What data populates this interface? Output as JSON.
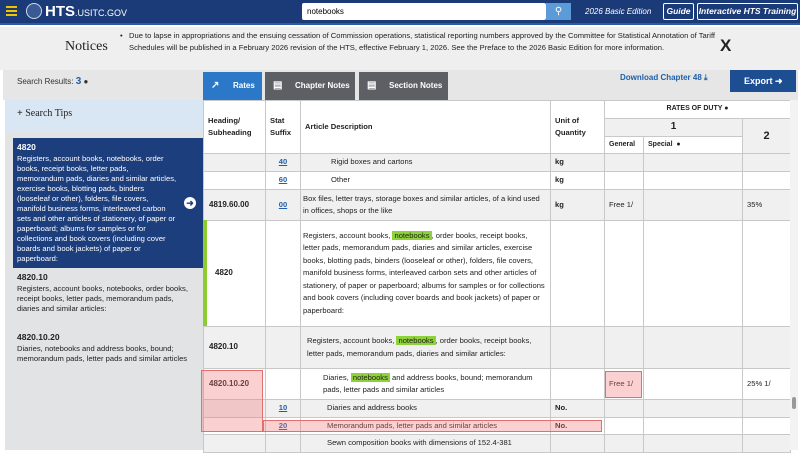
{
  "header": {
    "logo_main": "HTS",
    "logo_sub": ".USITC.GOV",
    "search_value": "notebooks",
    "edition": "2026 Basic Edition",
    "guide": "Guide",
    "training": "Interactive HTS Training"
  },
  "notices": {
    "title": "Notices",
    "text": "Due to lapse in appropriations and the ensuing cessation of Commission operations, statistical reporting numbers approved by the Committee for Statistical Annotation of Tariff Schedules will be published in a February 2026 revision of the HTS, effective February 1, 2026. See the Preface to the 2026 Basic Edition for more information.",
    "close": "X"
  },
  "toolbar": {
    "search_results_label": "Search Results:",
    "search_results_count": "3",
    "tabs": [
      {
        "label": "Rates",
        "active": true
      },
      {
        "label": "Chapter Notes"
      },
      {
        "label": "Section Notes"
      }
    ],
    "download": "Download Chapter 48",
    "export": "Export"
  },
  "sidebar": {
    "search_tips": "Search Tips",
    "results": [
      {
        "code": "4820",
        "desc": "Registers, account books, notebooks, order books, receipt books, letter pads, memorandum pads, diaries and similar articles, exercise books, blotting pads, binders (looseleaf or other), folders, file covers, manifold business forms, interleaved carbon sets and other articles of stationery, of paper or paperboard; albums for samples or for collections and book covers (including cover boards and book jackets) of paper or paperboard:"
      },
      {
        "code": "4820.10",
        "desc": "Registers, account books, notebooks, order books, receipt books, letter pads, memorandum pads, diaries and similar articles:"
      },
      {
        "code": "4820.10.20",
        "desc": "Diaries, notebooks and address books, bound; memorandum pads, letter pads and similar articles"
      }
    ]
  },
  "table": {
    "headers": {
      "heading": "Heading/ Subheading",
      "suffix": "Stat Suffix",
      "desc": "Article Description",
      "unit": "Unit of Quantity",
      "rates": "RATES OF DUTY",
      "col1": "1",
      "col2": "2",
      "general": "General",
      "special": "Special"
    },
    "rows": [
      {
        "heading": "",
        "suffix": "40",
        "desc": "Rigid boxes and cartons",
        "unit": "kg",
        "general": "",
        "special": "",
        "col2": ""
      },
      {
        "heading": "",
        "suffix": "60",
        "desc": "Other",
        "unit": "kg",
        "general": "",
        "special": "",
        "col2": ""
      },
      {
        "heading": "4819.60.00",
        "suffix": "00",
        "desc": "Box files, letter trays, storage boxes and similar articles, of a kind used in offices, shops or the like",
        "unit": "kg",
        "general": "Free 1/",
        "special": "",
        "col2": "35%"
      },
      {
        "heading": "4820",
        "suffix": "",
        "desc_pre": "Registers, account books, ",
        "desc_hl": "notebooks",
        "desc_post": ", order books, receipt books, letter pads, memorandum pads, diaries and similar articles, exercise books, blotting pads, binders (looseleaf or other), folders, file covers, manifold business forms, interleaved carbon sets and other articles of stationery, of paper or paperboard; albums for samples or for collections and book covers (including cover boards and book jackets) of paper or paperboard:",
        "unit": "",
        "general": "",
        "special": "",
        "col2": ""
      },
      {
        "heading": "4820.10",
        "suffix": "",
        "desc_pre": "Registers, account books, ",
        "desc_hl": "notebooks",
        "desc_post": ", order books, receipt books, letter pads, memorandum pads, diaries and similar articles:",
        "unit": "",
        "general": "",
        "special": "",
        "col2": ""
      },
      {
        "heading": "4820.10.20",
        "suffix": "",
        "desc_pre": "Diaries, ",
        "desc_hl": "notebooks",
        "desc_post": " and address books, bound; memorandum pads, letter pads and similar articles",
        "unit": "",
        "general": "Free 1/",
        "special": "",
        "col2": "25% 1/"
      },
      {
        "heading": "",
        "suffix": "10",
        "desc": "Diaries and address books",
        "unit": "No.",
        "general": "",
        "special": "",
        "col2": ""
      },
      {
        "heading": "",
        "suffix": "20",
        "desc": "Memorandum pads, letter pads and similar articles",
        "unit": "No.",
        "general": "",
        "special": "",
        "col2": ""
      },
      {
        "heading": "",
        "suffix": "",
        "desc": "Sewn composition books with dimensions of 152.4-381",
        "unit": "",
        "general": "",
        "special": "",
        "col2": ""
      }
    ]
  },
  "colors": {
    "header": "#1b3b78",
    "accent": "#1f5fa8",
    "highlight": "#8fd13a",
    "selected": "#1c3e7c"
  }
}
